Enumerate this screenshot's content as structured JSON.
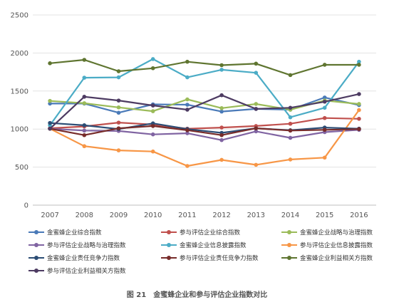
{
  "chart_data": {
    "type": "line",
    "x": [
      "2007",
      "2008",
      "2009",
      "2010",
      "2011",
      "2012",
      "2013",
      "2014",
      "2015",
      "2016"
    ],
    "ylim": [
      0,
      2500
    ],
    "yticks": [
      0,
      500,
      1000,
      1500,
      2000,
      2500
    ],
    "grid": true,
    "legend_position": "bottom",
    "caption": "图 21　金蜜蜂企业和参与评估企业指数对比",
    "series": [
      {
        "name": "金蜜蜂企业综合指数",
        "color": "#4a7ab8",
        "values": [
          1335,
          1335,
          1215,
          1325,
          1320,
          1230,
          1265,
          1255,
          1415,
          1315
        ]
      },
      {
        "name": "参与评估企业综合指数",
        "color": "#c0504d",
        "values": [
          1010,
          1035,
          1085,
          1060,
          1005,
          1020,
          1040,
          1070,
          1145,
          1135
        ]
      },
      {
        "name": "金蜜蜂企业战略与治理指数",
        "color": "#9bbb59",
        "values": [
          1370,
          1340,
          1285,
          1235,
          1390,
          1275,
          1330,
          1255,
          1375,
          1330
        ]
      },
      {
        "name": "参与评估企业战略与治理指数",
        "color": "#8064a2",
        "values": [
          1005,
          980,
          975,
          930,
          945,
          855,
          970,
          885,
          960,
          990
        ]
      },
      {
        "name": "金蜜蜂企业信息披露指数",
        "color": "#4bacc6",
        "values": [
          1050,
          1675,
          1680,
          1920,
          1680,
          1780,
          1740,
          1155,
          1280,
          1885
        ]
      },
      {
        "name": "参与评估企业信息披露指数",
        "color": "#f79646",
        "values": [
          1005,
          775,
          720,
          705,
          515,
          595,
          530,
          600,
          625,
          1250
        ]
      },
      {
        "name": "金蜜蜂企业责任竞争力指数",
        "color": "#2c4d75",
        "values": [
          1080,
          1050,
          1000,
          1075,
          1000,
          950,
          1010,
          985,
          1020,
          1005
        ]
      },
      {
        "name": "参与评估企业责任竞争力指数",
        "color": "#772c2a",
        "values": [
          1005,
          920,
          1010,
          1040,
          985,
          920,
          1010,
          980,
          990,
          1000
        ]
      },
      {
        "name": "金蜜蜂企业利益相关方指数",
        "color": "#5f7530",
        "values": [
          1865,
          1910,
          1760,
          1800,
          1885,
          1840,
          1860,
          1710,
          1845,
          1845
        ]
      },
      {
        "name": "参与评估企业利益相关方指数",
        "color": "#4d3b62",
        "values": [
          1005,
          1425,
          1375,
          1310,
          1255,
          1445,
          1265,
          1280,
          1360,
          1460
        ]
      }
    ]
  }
}
